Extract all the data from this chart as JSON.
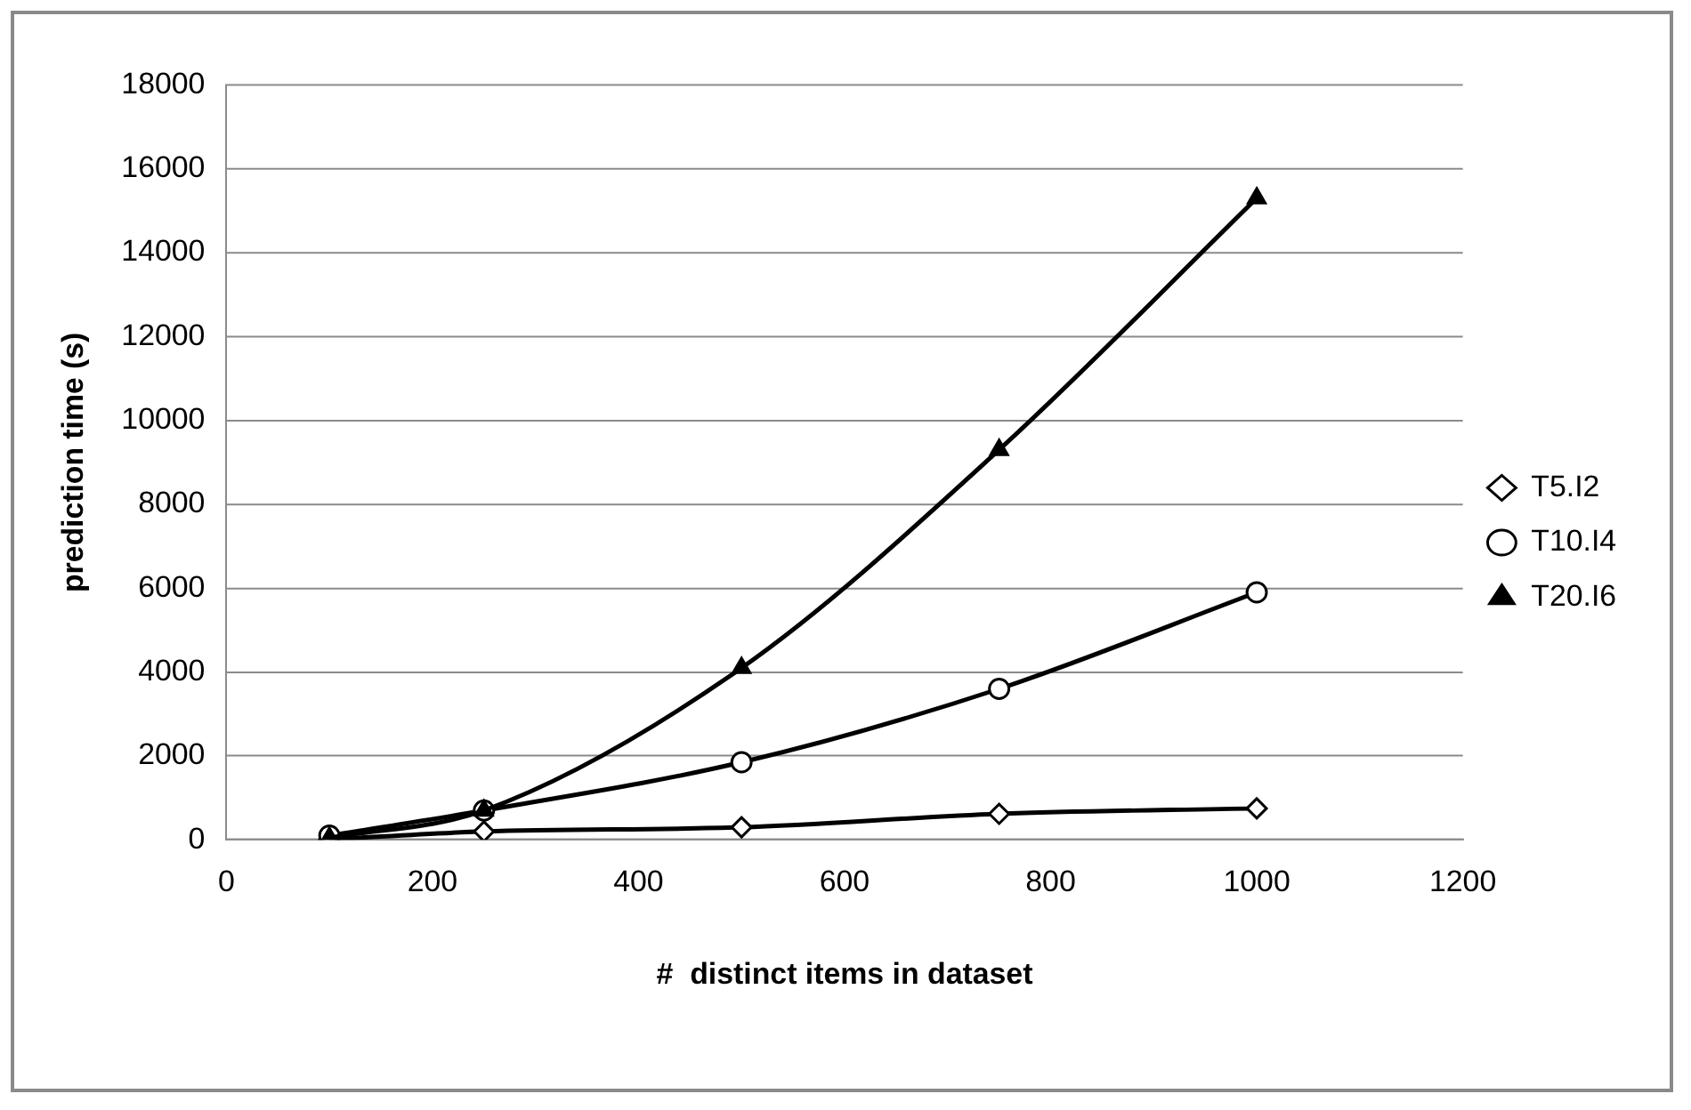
{
  "chart_data": {
    "type": "line",
    "xlabel": "#  distinct items in dataset",
    "ylabel": "prediction time (s)",
    "x": [
      100,
      250,
      500,
      750,
      1000
    ],
    "series": [
      {
        "name": "T5.I2",
        "color": "#000000",
        "marker": "diamond",
        "values": [
          10,
          200,
          300,
          620,
          750
        ]
      },
      {
        "name": "T10.I4",
        "color": "#000000",
        "marker": "circle",
        "values": [
          100,
          700,
          1850,
          3600,
          5900
        ]
      },
      {
        "name": "T20.I6",
        "color": "#000000",
        "marker": "triangle",
        "values": [
          50,
          700,
          4100,
          9300,
          15300
        ]
      }
    ],
    "xlim": [
      0,
      1200
    ],
    "xticks": [
      0,
      200,
      400,
      600,
      800,
      1000,
      1200
    ],
    "ylim": [
      0,
      18000
    ],
    "yticks": [
      0,
      2000,
      4000,
      6000,
      8000,
      10000,
      12000,
      14000,
      16000,
      18000
    ],
    "grid": "y",
    "legend": "right"
  }
}
